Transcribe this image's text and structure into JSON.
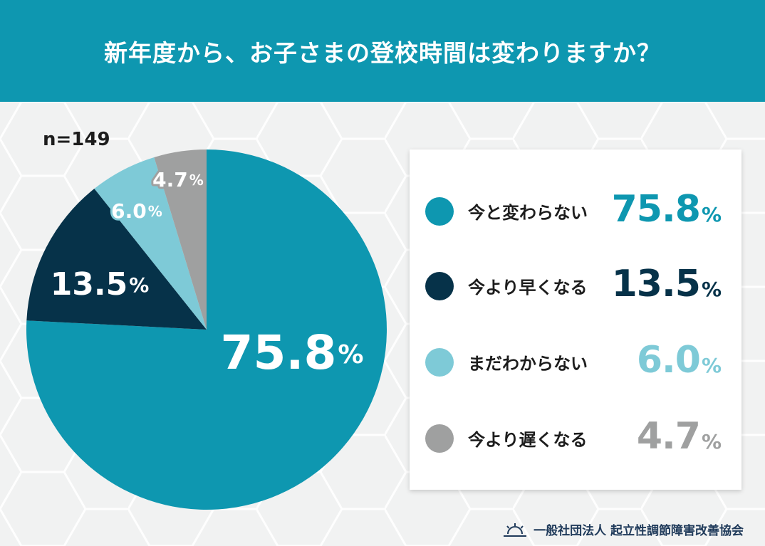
{
  "header": {
    "title": "新年度から、お子さまの登校時間は変わりますか？"
  },
  "sample_size": "n=149",
  "chart_data": {
    "type": "pie",
    "title": "新年度から、お子さまの登校時間は変わりますか？",
    "slices": [
      {
        "label": "今と変わらない",
        "value": 75.8,
        "value_text": "75.8",
        "color": "#0e97b0"
      },
      {
        "label": "今より早くなる",
        "value": 13.5,
        "value_text": "13.5",
        "color": "#063249"
      },
      {
        "label": "まだわからない",
        "value": 6.0,
        "value_text": "6.0",
        "color": "#7ecad7"
      },
      {
        "label": "今より遅くなる",
        "value": 4.7,
        "value_text": "4.7",
        "color": "#9fa0a0"
      }
    ],
    "unit": "%",
    "start_angle": "12 o'clock",
    "direction": "clockwise",
    "legend_position": "right"
  },
  "footer": {
    "organization": "一般社団法人 起立性調節障害改善協会"
  },
  "colors": {
    "header_bg": "#0e97b0",
    "background": "#f1f2f2",
    "footer_text": "#1f3a5a"
  }
}
